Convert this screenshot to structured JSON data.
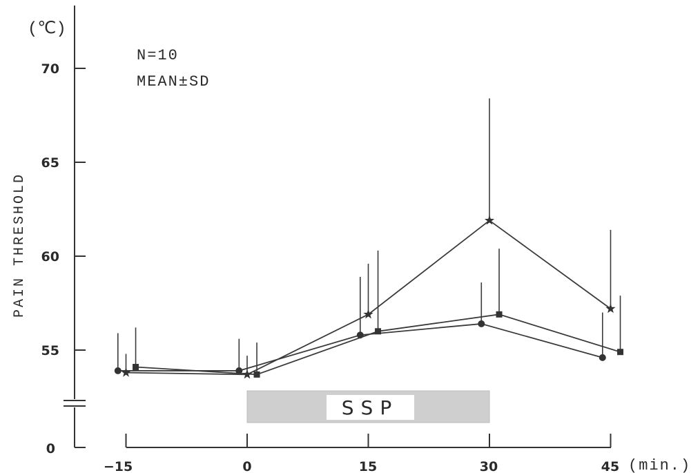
{
  "chart_data": {
    "type": "line",
    "y_unit": "(℃)",
    "ylabel": "PAIN THRESHOLD",
    "x_unit": "(min.)",
    "annotations": [
      "N=10",
      "MEAN±SD"
    ],
    "x_ticks": [
      "−15",
      "0",
      "15",
      "30",
      "45"
    ],
    "y_ticks": [
      "0",
      "55",
      "60",
      "65",
      "70"
    ],
    "ylim": [
      53,
      72
    ],
    "xlim": [
      -20,
      50
    ],
    "y_axis_break": true,
    "shaded_period": {
      "label": "SSP",
      "x_start": 0,
      "x_end": 30
    },
    "series": [
      {
        "marker": "circle",
        "x": [
          -15,
          0,
          15,
          30,
          45
        ],
        "values": [
          53.9,
          53.9,
          55.8,
          56.4,
          54.6
        ],
        "sd": [
          2.0,
          1.7,
          3.1,
          2.2,
          2.4
        ]
      },
      {
        "marker": "star",
        "x": [
          -15,
          0,
          15,
          30,
          45
        ],
        "values": [
          53.8,
          53.7,
          56.9,
          61.9,
          57.2
        ],
        "sd": [
          1.0,
          1.0,
          2.7,
          6.5,
          4.2
        ]
      },
      {
        "marker": "square",
        "x": [
          -15,
          0,
          15,
          30,
          45
        ],
        "values": [
          54.1,
          53.7,
          56.0,
          56.9,
          54.9
        ],
        "sd": [
          2.1,
          1.7,
          4.3,
          3.5,
          3.0
        ]
      }
    ]
  }
}
